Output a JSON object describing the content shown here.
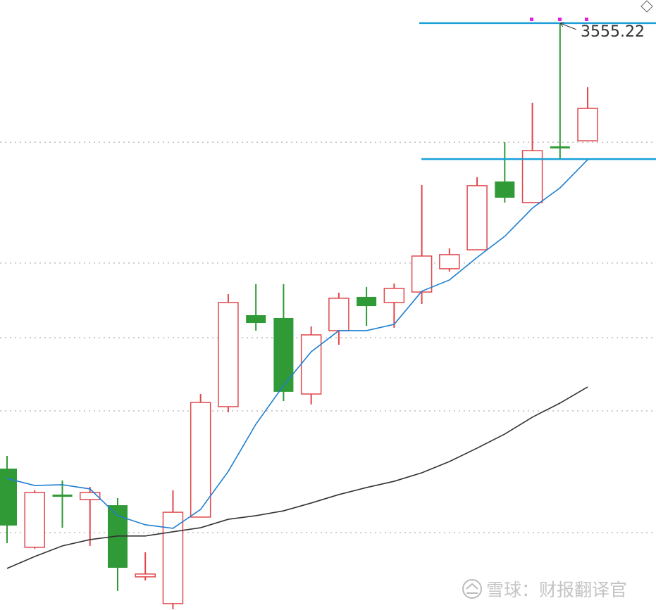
{
  "chart_data": {
    "type": "candlestick",
    "categories": [
      null,
      null,
      null,
      null,
      null,
      null,
      null,
      null,
      null,
      null,
      null,
      null,
      null,
      null,
      null,
      null,
      null,
      null,
      null,
      null,
      null,
      null
    ],
    "open": [
      3270.4,
      3220.1,
      3253.8,
      3250.6,
      3247.0,
      3201.2,
      3184.1,
      3239.4,
      3310.0,
      3368.5,
      3366.7,
      3318.1,
      3358.6,
      3380.2,
      3376.6,
      3383.3,
      3398.2,
      3410.3,
      3454.0,
      3440.5,
      3476.4,
      3480.0
    ],
    "high": [
      3278.5,
      3256.5,
      3262.8,
      3258.7,
      3251.5,
      3216.9,
      3256.5,
      3318.1,
      3382.0,
      3388.3,
      3388.3,
      3361.3,
      3382.9,
      3386.5,
      3388.7,
      3451.7,
      3411.2,
      3456.7,
      3479.1,
      3504.3,
      3555.22,
      3514.2
    ],
    "low": [
      3222.8,
      3219.2,
      3232.6,
      3221.0,
      3192.2,
      3198.9,
      3180.5,
      3239.4,
      3306.4,
      3358.6,
      3313.6,
      3311.4,
      3349.6,
      3361.7,
      3360.4,
      3375.7,
      3396.4,
      3410.3,
      3440.5,
      3440.5,
      3468.8,
      3480.0
    ],
    "close": [
      3234.0,
      3255.1,
      3252.4,
      3255.1,
      3207.0,
      3203.0,
      3242.5,
      3312.7,
      3376.6,
      3363.5,
      3319.5,
      3355.9,
      3379.3,
      3374.3,
      3385.6,
      3406.3,
      3407.2,
      3451.3,
      3443.6,
      3473.7,
      3475.1,
      3500.7
    ],
    "up_color": "#e0474c",
    "down_color": "#2f9a36",
    "lines": [
      {
        "color": "#1f7fd0",
        "values": [
          3264.1,
          3259.6,
          3260.1,
          3257.4,
          3240.3,
          3234.5,
          3232.2,
          3244.3,
          3268.6,
          3298.8,
          3323.5,
          3345.1,
          3358.6,
          3358.6,
          3362.6,
          3383.8,
          3391.0,
          3405.4,
          3418.9,
          3436.9,
          3449.9,
          3467.9
        ]
      },
      {
        "color": "#333333",
        "values": [
          3206.6,
          3214.2,
          3221.0,
          3225.0,
          3227.3,
          3227.3,
          3230.0,
          3232.6,
          3238.0,
          3240.3,
          3243.4,
          3248.4,
          3253.8,
          3258.3,
          3262.3,
          3267.7,
          3274.9,
          3283.5,
          3292.5,
          3303.3,
          3312.3,
          3322.6
        ]
      }
    ],
    "hlines": [
      {
        "value": 3555.22,
        "color": "#1a9fd8"
      },
      {
        "value": 3468.3,
        "color": "#1a9fd8"
      }
    ],
    "grid_lines": [
      3479.1,
      3401.8,
      3354.1,
      3307.3,
      3229.5
    ],
    "ylim": [
      3180,
      3570
    ],
    "annotation": "3555.22",
    "watermark": "雪球：财报翻译官"
  }
}
